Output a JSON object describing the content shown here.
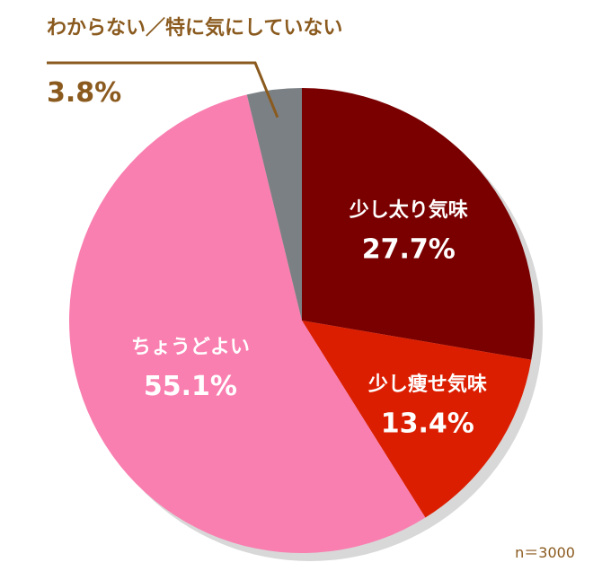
{
  "chart_data": {
    "type": "pie",
    "slices": [
      {
        "label": "少し太り気味",
        "value": 27.7,
        "value_text": "27.7%",
        "color": "#7a0000",
        "label_color": "#ffffff"
      },
      {
        "label": "少し痩せ気味",
        "value": 13.4,
        "value_text": "13.4%",
        "color": "#dc1e00",
        "label_color": "#ffffff"
      },
      {
        "label": "ちょうどよい",
        "value": 55.1,
        "value_text": "55.1%",
        "color": "#f97fb0",
        "label_color": "#ffffff"
      },
      {
        "label": "わからない／特に気にしていない",
        "value": 3.8,
        "value_text": "3.8%",
        "color": "#7b8084",
        "label_color": "#8a5a1e"
      }
    ],
    "start_angle": "12 o'clock",
    "direction": "clockwise",
    "shadow_color": "#d8d8d8",
    "callout_color": "#8a5a1e",
    "note": "n＝3000"
  }
}
